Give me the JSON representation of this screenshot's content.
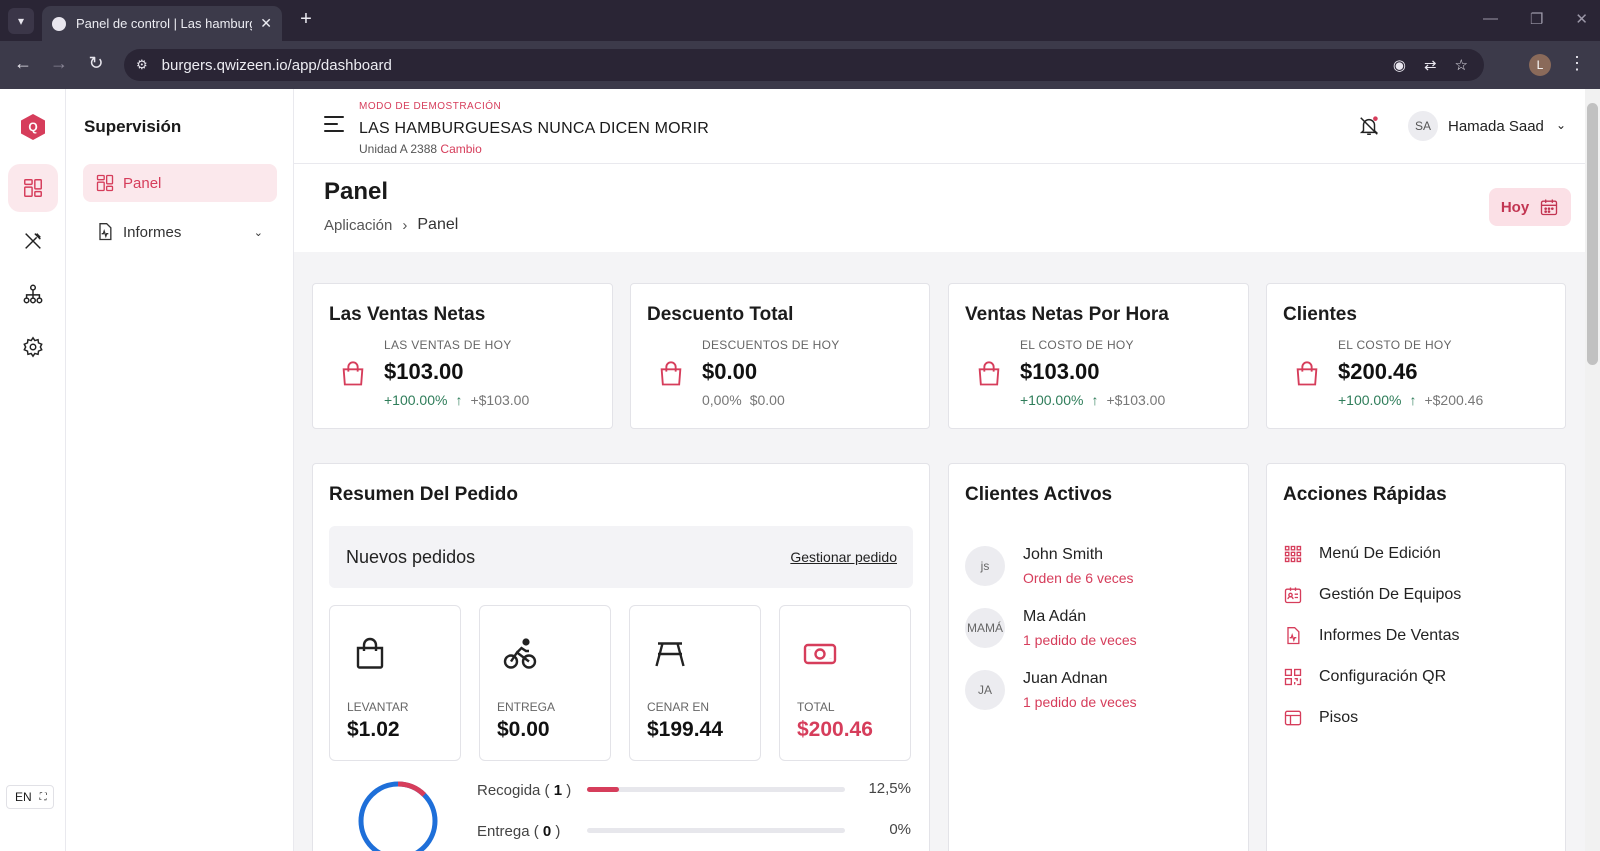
{
  "browser": {
    "tab_title": "Panel de control | Las hamburguesas",
    "url": "burgers.qwizeen.io/app/dashboard",
    "profile_initial": "L"
  },
  "rail": {
    "logo_letter": "Q",
    "language": "EN"
  },
  "subnav": {
    "title": "Supervisión",
    "items": [
      {
        "label": "Panel"
      },
      {
        "label": "Informes"
      }
    ]
  },
  "topbar": {
    "demo_label": "MODO DE DEMOSTRACIÓN",
    "store_name": "LAS HAMBURGUESAS NUNCA DICEN MORIR",
    "unit": "Unidad A 2388",
    "change": "Cambio",
    "user_initials": "SA",
    "user_name": "Hamada Saad"
  },
  "page": {
    "title": "Panel",
    "breadcrumb": [
      "Aplicación",
      "Panel"
    ],
    "date_button": "Hoy"
  },
  "stats": [
    {
      "title": "Las Ventas Netas",
      "sub": "LAS VENTAS DE HOY",
      "value": "$103.00",
      "pct": "+100.00%",
      "delta": "+$103.00",
      "up": true
    },
    {
      "title": "Descuento Total",
      "sub": "DESCUENTOS DE HOY",
      "value": "$0.00",
      "pct": "0,00%",
      "delta": "$0.00",
      "up": false
    },
    {
      "title": "Ventas Netas Por Hora",
      "sub": "EL COSTO DE HOY",
      "value": "$103.00",
      "pct": "+100.00%",
      "delta": "+$103.00",
      "up": true
    },
    {
      "title": "Clientes",
      "sub": "EL COSTO DE HOY",
      "value": "$200.46",
      "pct": "+100.00%",
      "delta": "+$200.46",
      "up": true
    }
  ],
  "order_summary": {
    "title": "Resumen Del Pedido",
    "new_orders": "Nuevos pedidos",
    "manage_link": "Gestionar pedido",
    "tiles": [
      {
        "icon": "shopping-bag-icon",
        "label": "LEVANTAR",
        "value": "$1.02"
      },
      {
        "icon": "bicycle-icon",
        "label": "ENTREGA",
        "value": "$0.00"
      },
      {
        "icon": "picnic-table-icon",
        "label": "CENAR EN",
        "value": "$199.44"
      },
      {
        "icon": "cash-icon",
        "label": "TOTAL",
        "value": "$200.46"
      }
    ],
    "progress": [
      {
        "label": "Recogida",
        "count": "1",
        "pct_text": "12,5%",
        "fraction": 0.125
      },
      {
        "label": "Entrega",
        "count": "0",
        "pct_text": "0%",
        "fraction": 0
      }
    ],
    "colors": {
      "accent": "#d63d5b",
      "donut_blue": "#1e6fd9"
    }
  },
  "active_clients": {
    "title": "Clientes Activos",
    "items": [
      {
        "initials": "js",
        "name": "John Smith",
        "orders": "Orden de 6 veces"
      },
      {
        "initials": "MAMÁ",
        "name": "Ma Adán",
        "orders": "1 pedido de veces"
      },
      {
        "initials": "JA",
        "name": "Juan Adnan",
        "orders": "1 pedido de veces"
      }
    ]
  },
  "quick_actions": {
    "title": "Acciones Rápidas",
    "items": [
      {
        "icon": "grid-icon",
        "label": "Menú De Edición"
      },
      {
        "icon": "team-icon",
        "label": "Gestión De Equipos"
      },
      {
        "icon": "report-icon",
        "label": "Informes De Ventas"
      },
      {
        "icon": "qr-icon",
        "label": "Configuración QR"
      },
      {
        "icon": "floor-icon",
        "label": "Pisos"
      }
    ]
  }
}
